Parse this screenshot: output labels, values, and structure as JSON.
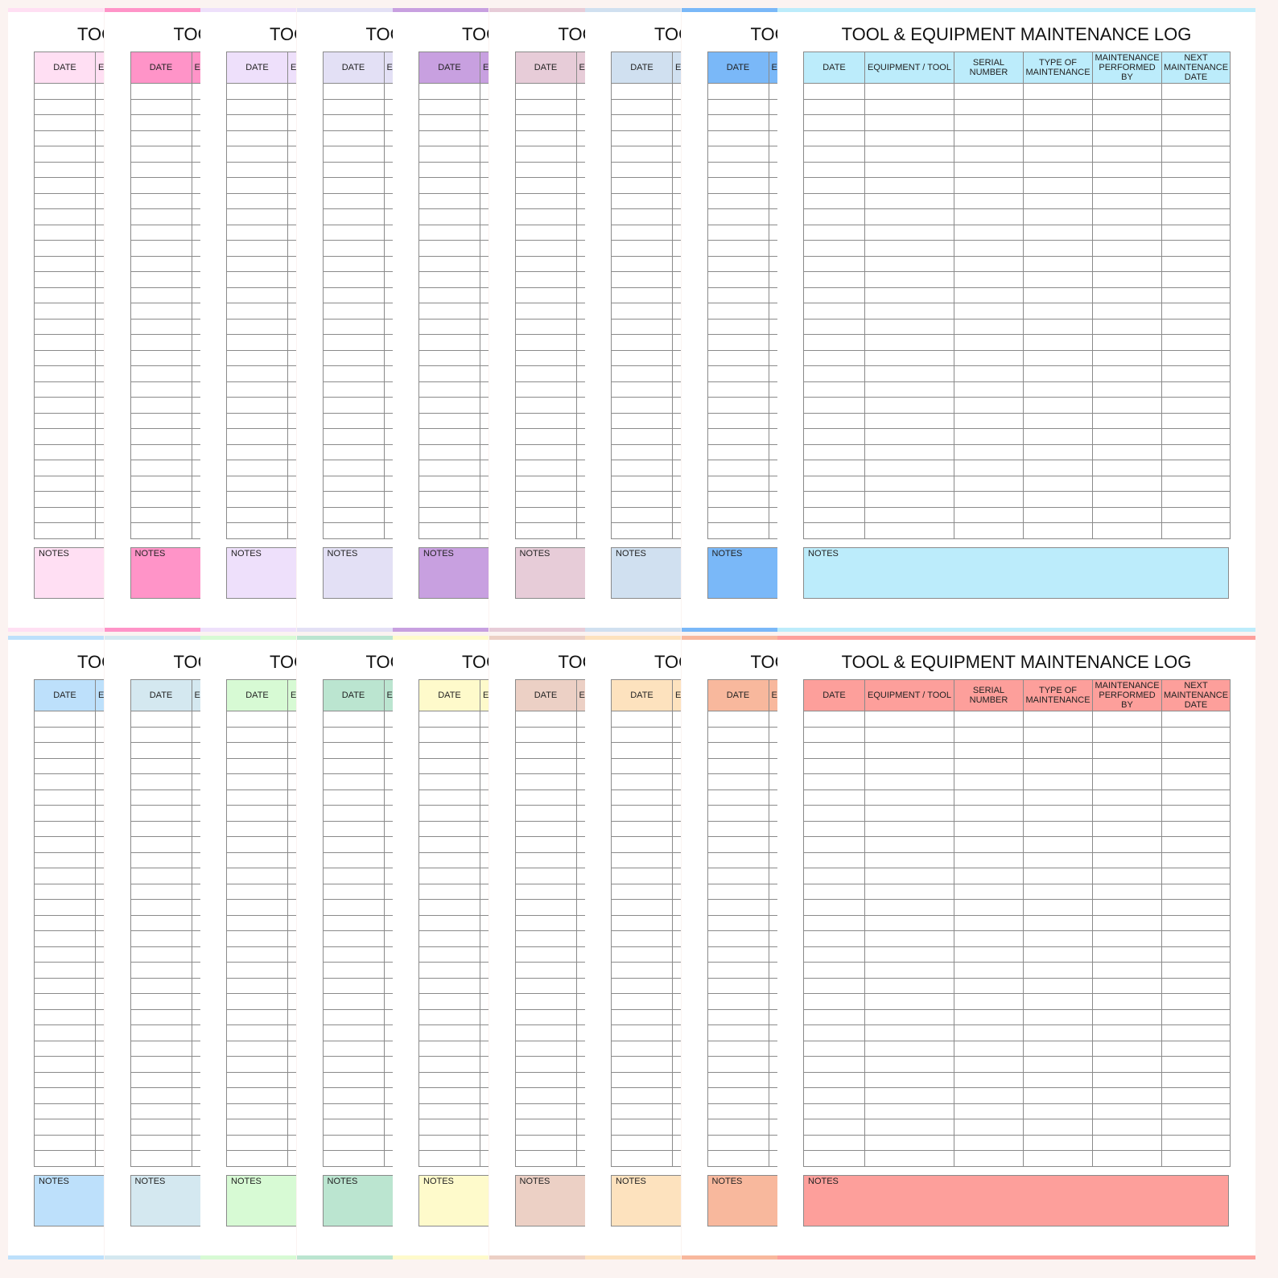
{
  "title": "TOOL & EQUIPMENT MAINTENANCE LOG",
  "headers": [
    "DATE",
    "EQUIPMENT / TOOL",
    "SERIAL NUMBER",
    "TYPE OF MAINTENANCE",
    "MAINTENANCE PERFORMED BY",
    "NEXT MAINTENANCE DATE"
  ],
  "notes_label": "NOTES",
  "row_count": 29,
  "groups": [
    {
      "colors": [
        "#ffdff3",
        "#ff94c8",
        "#eee0fb",
        "#e3e0f5",
        "#c8a0e0",
        "#e7ccd8",
        "#d0e0f0",
        "#7ab8f8",
        "#bcecfb"
      ]
    },
    {
      "colors": [
        "#bde0fb",
        "#d4e8f0",
        "#d7fad4",
        "#bbe5d0",
        "#fefacb",
        "#ecd0c5",
        "#fde2be",
        "#f8b89d",
        "#fd9f9b"
      ]
    }
  ]
}
